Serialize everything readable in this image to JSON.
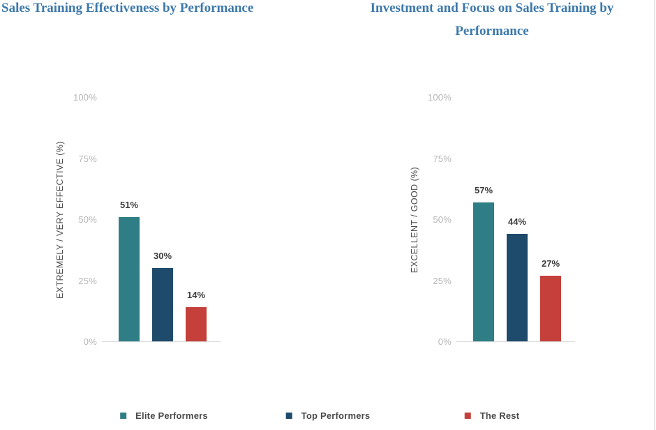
{
  "chart_data": [
    {
      "type": "bar",
      "title": "Sales Training Effectiveness by Performance",
      "ylabel": "EXTREMELY / VERY EFFECTIVE (%)",
      "xlabel": "",
      "ylim": [
        0,
        100
      ],
      "grid": false,
      "legend_position": "bottom",
      "yticks": [
        {
          "value": 0,
          "label": "0%"
        },
        {
          "value": 25,
          "label": "25%"
        },
        {
          "value": 50,
          "label": "50%"
        },
        {
          "value": 75,
          "label": "75%"
        },
        {
          "value": 100,
          "label": "100%"
        }
      ],
      "categories": [
        "Elite Performers",
        "Top Performers",
        "The Rest"
      ],
      "values": [
        51,
        30,
        14
      ],
      "value_labels": [
        "51%",
        "30%",
        "14%"
      ],
      "bar_colors": [
        "#2F7E85",
        "#1E4A6B",
        "#C5403B"
      ]
    },
    {
      "type": "bar",
      "title": "Investment and Focus on Sales Training by Performance",
      "ylabel": "EXCELLENT / GOOD (%)",
      "xlabel": "",
      "ylim": [
        0,
        100
      ],
      "grid": false,
      "legend_position": "bottom",
      "yticks": [
        {
          "value": 0,
          "label": "0%"
        },
        {
          "value": 25,
          "label": "25%"
        },
        {
          "value": 50,
          "label": "50%"
        },
        {
          "value": 75,
          "label": "75%"
        },
        {
          "value": 100,
          "label": "100%"
        }
      ],
      "categories": [
        "Elite Performers",
        "Top Performers",
        "The Rest"
      ],
      "values": [
        57,
        44,
        27
      ],
      "value_labels": [
        "57%",
        "44%",
        "27%"
      ],
      "bar_colors": [
        "#2F7E85",
        "#1E4A6B",
        "#C5403B"
      ]
    }
  ],
  "legend": {
    "items": [
      {
        "label": "Elite Performers",
        "color": "#2F7E85"
      },
      {
        "label": "Top Performers",
        "color": "#1E4A6B"
      },
      {
        "label": "The Rest",
        "color": "#C5403B"
      }
    ]
  },
  "colors": {
    "title_blue": "#3C78AB",
    "tick_label_gray": "#B6B6B6",
    "axis_label_gray": "#4E4E4E",
    "value_label_dark": "#3D3D3D",
    "axis_line": "#D8D8D8",
    "background": "#FFFFFF"
  }
}
